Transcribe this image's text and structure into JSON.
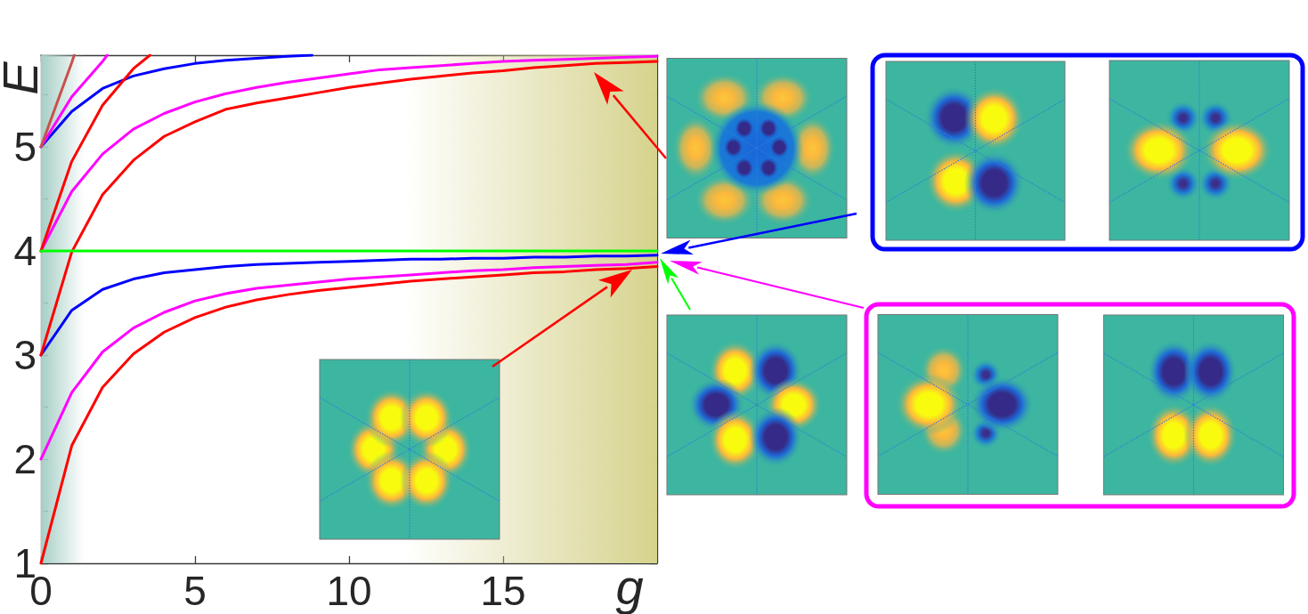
{
  "chart_data": {
    "type": "line",
    "xlabel": "g",
    "ylabel": "E",
    "x": [
      0,
      1,
      2,
      3,
      4,
      5,
      6,
      7,
      8,
      9,
      10,
      11,
      12,
      13,
      14,
      15,
      16,
      17,
      18,
      19,
      20
    ],
    "series": [
      {
        "color": "#ff0000",
        "values": [
          1.0,
          2.13,
          2.69,
          3.01,
          3.22,
          3.36,
          3.46,
          3.53,
          3.58,
          3.62,
          3.65,
          3.68,
          3.71,
          3.73,
          3.75,
          3.77,
          3.79,
          3.8,
          3.82,
          3.83,
          3.85
        ]
      },
      {
        "color": "#ff00ff",
        "values": [
          2.0,
          2.64,
          3.03,
          3.26,
          3.41,
          3.52,
          3.59,
          3.64,
          3.67,
          3.7,
          3.73,
          3.75,
          3.77,
          3.79,
          3.81,
          3.82,
          3.84,
          3.85,
          3.86,
          3.87,
          3.89
        ]
      },
      {
        "color": "#0000ff",
        "values": [
          3.0,
          3.43,
          3.63,
          3.73,
          3.79,
          3.82,
          3.85,
          3.87,
          3.88,
          3.89,
          3.9,
          3.91,
          3.92,
          3.92,
          3.93,
          3.93,
          3.94,
          3.94,
          3.95,
          3.95,
          3.96
        ]
      },
      {
        "color": "#ff0000",
        "values": [
          3.0,
          3.99,
          4.54,
          4.87,
          5.1,
          5.24,
          5.36,
          5.42,
          5.47,
          5.52,
          5.57,
          5.61,
          5.65,
          5.68,
          5.71,
          5.73,
          5.76,
          5.78,
          5.8,
          5.81,
          5.82
        ]
      },
      {
        "color": "#ff00ff",
        "values": [
          4.0,
          4.57,
          4.93,
          5.17,
          5.32,
          5.43,
          5.51,
          5.57,
          5.62,
          5.66,
          5.7,
          5.74,
          5.76,
          5.78,
          5.8,
          5.82,
          5.83,
          5.84,
          5.85,
          5.86,
          5.87
        ]
      },
      {
        "color": "#0000ff",
        "x": [
          0,
          1,
          2,
          3,
          4,
          5,
          6,
          7,
          8,
          8.8
        ],
        "values": [
          5.0,
          5.34,
          5.56,
          5.68,
          5.75,
          5.8,
          5.83,
          5.85,
          5.87,
          5.88
        ]
      },
      {
        "color": "#ff0000",
        "x": [
          0,
          1,
          2,
          3,
          3.54
        ],
        "values": [
          4.0,
          4.86,
          5.4,
          5.75,
          5.88
        ]
      },
      {
        "color": "#ff00ff",
        "x": [
          0,
          1,
          2,
          2.15
        ],
        "values": [
          5.0,
          5.48,
          5.82,
          5.88
        ]
      },
      {
        "color": "#c8504b",
        "x": [
          0,
          1,
          1.08
        ],
        "values": [
          5.0,
          5.81,
          5.88
        ]
      },
      {
        "color": "#00ff00",
        "x": [
          0,
          20
        ],
        "values": [
          4,
          4
        ]
      }
    ],
    "xlim": [
      0,
      20
    ],
    "xticks": [
      0,
      5,
      10,
      15
    ],
    "ylim": [
      1,
      5.88
    ],
    "yticks": [
      1,
      {
        "value": 1.5,
        "label": null
      },
      2,
      {
        "value": 2.5,
        "label": null
      },
      3,
      {
        "value": 3.5,
        "label": null
      },
      4,
      {
        "value": 4.5,
        "label": null
      },
      5,
      {
        "value": 5.5,
        "label": null
      }
    ],
    "bands": [
      {
        "axis": "x",
        "from": 0,
        "to": 1.4,
        "color": "#a6cec5"
      },
      {
        "axis": "x",
        "from": 11.8,
        "to": 20,
        "color": "#d6d38d"
      }
    ]
  }
}
